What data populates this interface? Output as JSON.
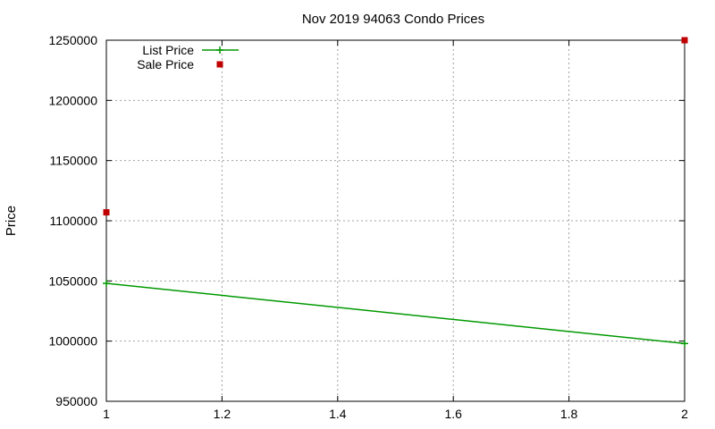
{
  "chart_data": {
    "type": "line",
    "title": "Nov 2019 94063 Condo Prices",
    "xlabel": "",
    "ylabel": "Price",
    "xlim": [
      1,
      2
    ],
    "ylim": [
      950000,
      1250000
    ],
    "xticks": [
      "1",
      "1.2",
      "1.4",
      "1.6",
      "1.8",
      "2"
    ],
    "yticks": [
      "950000",
      "1000000",
      "1050000",
      "1100000",
      "1150000",
      "1200000",
      "1250000"
    ],
    "grid": true,
    "legend_position": "top-left",
    "series": [
      {
        "name": "List Price",
        "kind": "linespoints",
        "color": "#009900",
        "points": [
          [
            1,
            1048000
          ],
          [
            2,
            998000
          ]
        ]
      },
      {
        "name": "Sale Price",
        "kind": "points",
        "color": "#c00000",
        "points": [
          [
            1,
            1107000
          ],
          [
            2,
            1250000
          ]
        ]
      }
    ]
  }
}
